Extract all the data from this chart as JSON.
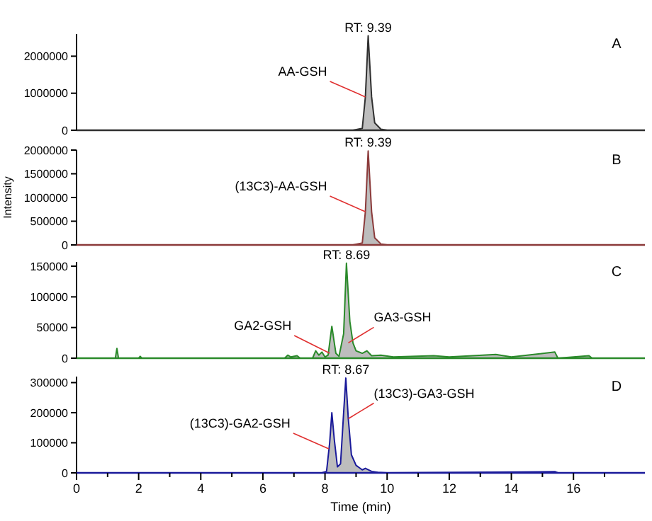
{
  "chart_data": [
    {
      "type": "area",
      "title": "A",
      "xlim": [
        0,
        18.3
      ],
      "ylim": [
        0,
        2600000
      ],
      "yticks": [
        0,
        1000000,
        2000000
      ],
      "tick_labels": "y",
      "annotations": [
        {
          "text": "RT: 9.39",
          "x": 9.39,
          "y": 2550000
        },
        {
          "text": "AA-GSH",
          "x": 9.3,
          "y": 900000
        }
      ],
      "series": [
        {
          "color": "#303030",
          "x": [
            0,
            8.9,
            9.2,
            9.3,
            9.39,
            9.5,
            9.6,
            9.8,
            10.0,
            18.3
          ],
          "values": [
            0,
            0,
            50000,
            900000,
            2550000,
            900000,
            200000,
            30000,
            0,
            0
          ]
        }
      ]
    },
    {
      "type": "area",
      "title": "B",
      "ylabel": "Intensity",
      "xlim": [
        0,
        18.3
      ],
      "ylim": [
        0,
        2000000
      ],
      "yticks": [
        0,
        500000,
        1000000,
        1500000,
        2000000
      ],
      "tick_labels": "y",
      "annotations": [
        {
          "text": "RT: 9.39",
          "x": 9.39,
          "y": 1980000
        },
        {
          "text": "(13C3)-AA-GSH",
          "x": 9.3,
          "y": 700000
        }
      ],
      "series": [
        {
          "color": "#8b3a3a",
          "x": [
            0,
            8.9,
            9.2,
            9.3,
            9.39,
            9.5,
            9.6,
            9.8,
            10.0,
            18.3
          ],
          "values": [
            0,
            0,
            40000,
            700000,
            1980000,
            700000,
            150000,
            20000,
            0,
            0
          ]
        }
      ]
    },
    {
      "type": "area",
      "title": "C",
      "xlim": [
        0,
        18.3
      ],
      "ylim": [
        0,
        157000
      ],
      "yticks": [
        0,
        50000,
        100000,
        150000
      ],
      "tick_labels": "y",
      "annotations": [
        {
          "text": "RT: 8.69",
          "x": 8.69,
          "y": 155000
        },
        {
          "text": "GA2-GSH",
          "x": 8.15,
          "y": 8000
        },
        {
          "text": "GA3-GSH",
          "x": 8.75,
          "y": 25000
        }
      ],
      "series": [
        {
          "color": "#2a8a2a",
          "x": [
            0,
            1.25,
            1.3,
            1.35,
            2.0,
            2.05,
            2.1,
            6.7,
            6.8,
            6.9,
            7.1,
            7.2,
            7.6,
            7.7,
            7.8,
            7.9,
            8.0,
            8.1,
            8.22,
            8.35,
            8.45,
            8.6,
            8.69,
            8.8,
            8.9,
            9.0,
            9.2,
            9.35,
            9.5,
            9.8,
            10.2,
            11.5,
            12.0,
            13.5,
            14.0,
            15.4,
            15.5,
            16.5,
            16.6,
            18.3
          ],
          "values": [
            0,
            0,
            16000,
            0,
            0,
            3000,
            0,
            0,
            5000,
            2000,
            4000,
            0,
            0,
            12000,
            5000,
            10000,
            2000,
            5000,
            52000,
            8000,
            3000,
            40000,
            155000,
            60000,
            25000,
            12000,
            8000,
            12000,
            4000,
            5000,
            2000,
            4000,
            2000,
            6000,
            2000,
            10000,
            0,
            4000,
            0,
            0
          ]
        }
      ]
    },
    {
      "type": "area",
      "title": "D",
      "xlabel": "Time (min)",
      "xlim": [
        0,
        18.3
      ],
      "xticks": [
        0,
        {
          "value": 1,
          "label": null
        },
        2,
        {
          "value": 3,
          "label": null
        },
        4,
        {
          "value": 5,
          "label": null
        },
        6,
        {
          "value": 7,
          "label": null
        },
        8,
        {
          "value": 9,
          "label": null
        },
        10,
        {
          "value": 11,
          "label": null
        },
        12,
        {
          "value": 13,
          "label": null
        },
        14,
        {
          "value": 15,
          "label": null
        },
        16,
        {
          "value": 17,
          "label": null
        }
      ],
      "ylim": [
        0,
        320000
      ],
      "yticks": [
        0,
        100000,
        200000,
        300000
      ],
      "annotations": [
        {
          "text": "RT: 8.67",
          "x": 8.67,
          "y": 315000
        },
        {
          "text": "(13C3)-GA2-GSH",
          "x": 8.12,
          "y": 80000
        },
        {
          "text": "(13C3)-GA3-GSH",
          "x": 8.75,
          "y": 180000
        }
      ],
      "series": [
        {
          "color": "#1a1a9a",
          "x": [
            0,
            7.9,
            8.05,
            8.15,
            8.22,
            8.3,
            8.4,
            8.5,
            8.6,
            8.67,
            8.75,
            8.85,
            9.0,
            9.2,
            9.3,
            9.5,
            9.7,
            10.0,
            15.4,
            15.5,
            18.3
          ],
          "values": [
            0,
            0,
            5000,
            100000,
            200000,
            110000,
            20000,
            30000,
            200000,
            315000,
            180000,
            60000,
            25000,
            10000,
            15000,
            5000,
            2000,
            0,
            4000,
            0,
            0
          ]
        }
      ]
    }
  ]
}
